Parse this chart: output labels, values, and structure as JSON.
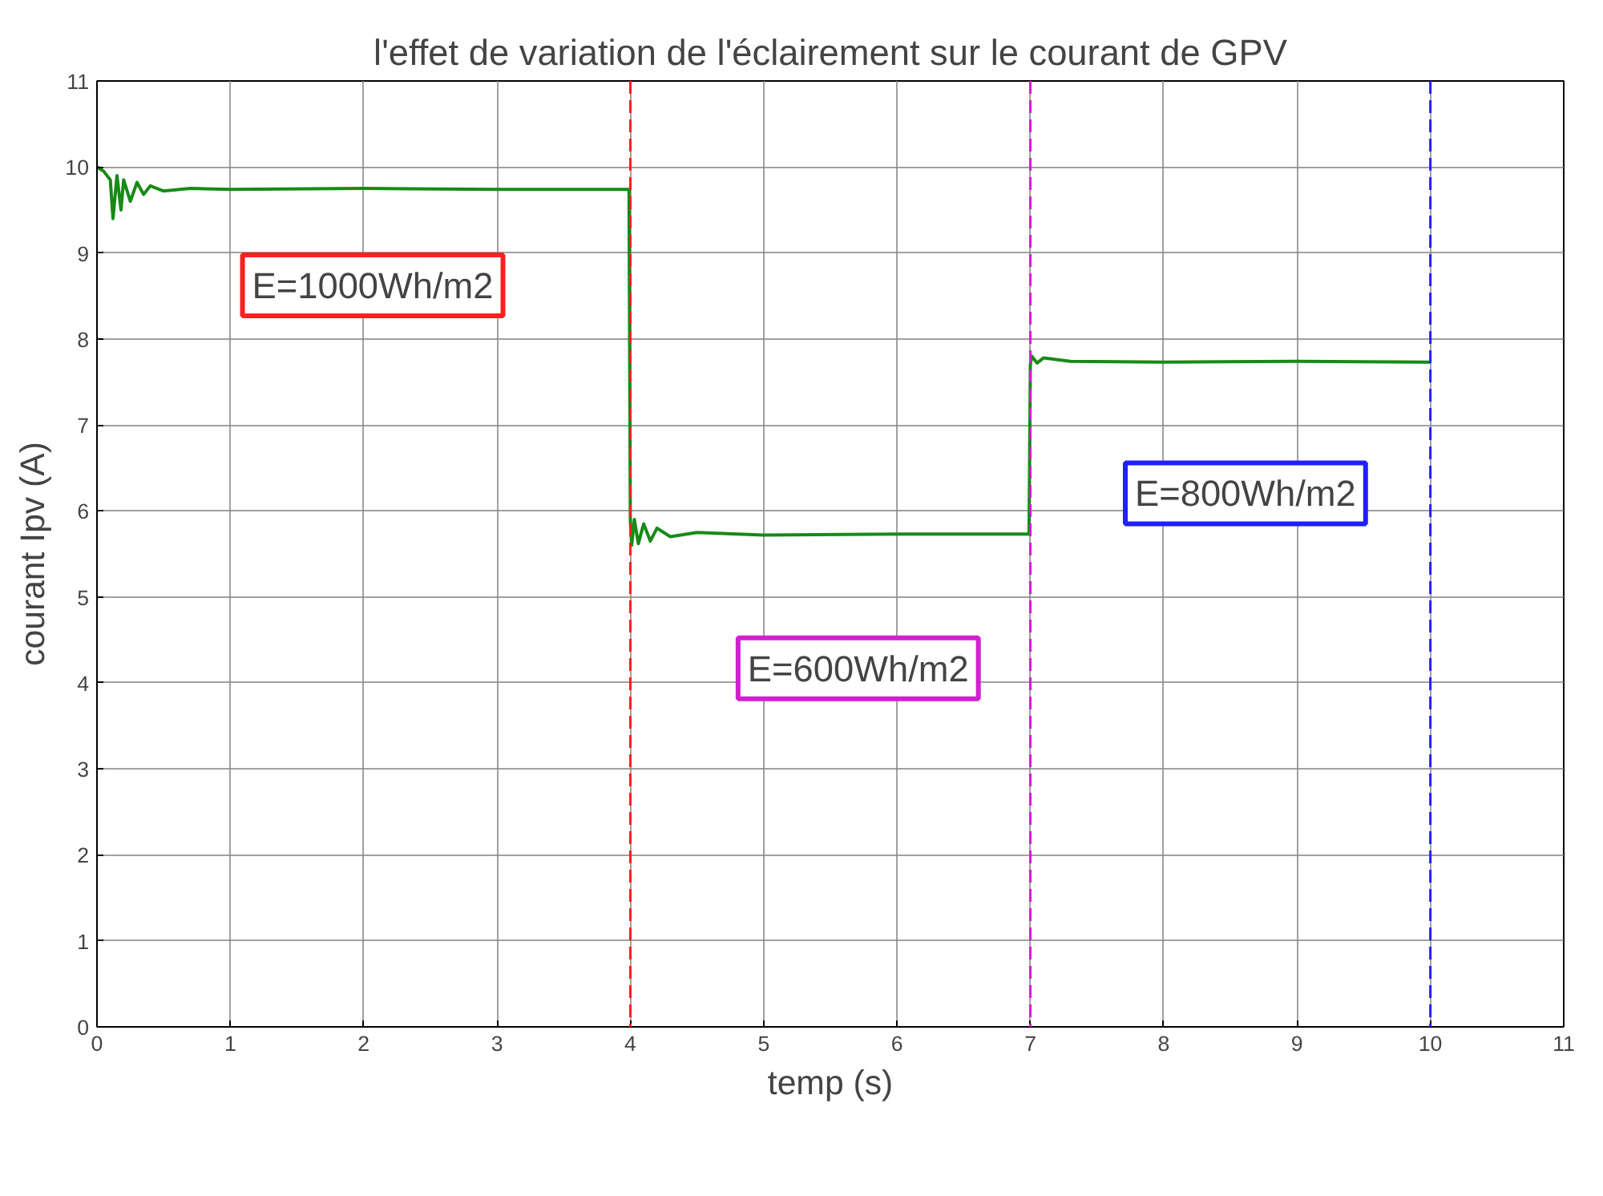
{
  "chart_data": {
    "type": "line",
    "title": "l'effet de variation de l'éclairement sur le courant de GPV",
    "xlabel": "temp (s)",
    "ylabel": "courant Ipv (A)",
    "x": [
      0,
      0.05,
      0.1,
      0.12,
      0.15,
      0.18,
      0.2,
      0.25,
      0.3,
      0.35,
      0.4,
      0.5,
      0.7,
      1,
      2,
      3,
      3.99,
      4.0,
      4.01,
      4.03,
      4.06,
      4.1,
      4.15,
      4.2,
      4.3,
      4.5,
      5,
      6,
      6.99,
      7.0,
      7.01,
      7.05,
      7.1,
      7.3,
      8,
      9,
      10
    ],
    "series": [
      {
        "color": "#178a17",
        "values": [
          10.0,
          9.95,
          9.85,
          9.4,
          9.9,
          9.5,
          9.85,
          9.6,
          9.82,
          9.68,
          9.78,
          9.72,
          9.75,
          9.74,
          9.75,
          9.74,
          9.74,
          5.9,
          5.6,
          5.9,
          5.62,
          5.85,
          5.65,
          5.8,
          5.7,
          5.75,
          5.72,
          5.73,
          5.73,
          7.7,
          7.8,
          7.72,
          7.78,
          7.74,
          7.73,
          7.74,
          7.73
        ]
      }
    ],
    "xlim": [
      0,
      11
    ],
    "ylim": [
      0,
      11
    ],
    "xticks": [
      0,
      1,
      2,
      3,
      4,
      5,
      6,
      7,
      8,
      9,
      10,
      11
    ],
    "yticks": [
      0,
      1,
      2,
      3,
      4,
      5,
      6,
      7,
      8,
      9,
      10,
      11
    ],
    "grid": true,
    "line_style": "solid",
    "marker": "none",
    "ref_lines": [
      {
        "axis": "x",
        "value": 4,
        "label": null,
        "color": "#ff2020",
        "line_style": "dashed"
      },
      {
        "axis": "x",
        "value": 7,
        "label": null,
        "color": "#d020d0",
        "line_style": "dashed"
      },
      {
        "axis": "x",
        "value": 10,
        "label": null,
        "color": "#2020ff",
        "line_style": "dashed"
      }
    ],
    "annotations": [
      "E=1000Wh/m2",
      "E=600Wh/m2",
      "E=800Wh/m2"
    ]
  }
}
